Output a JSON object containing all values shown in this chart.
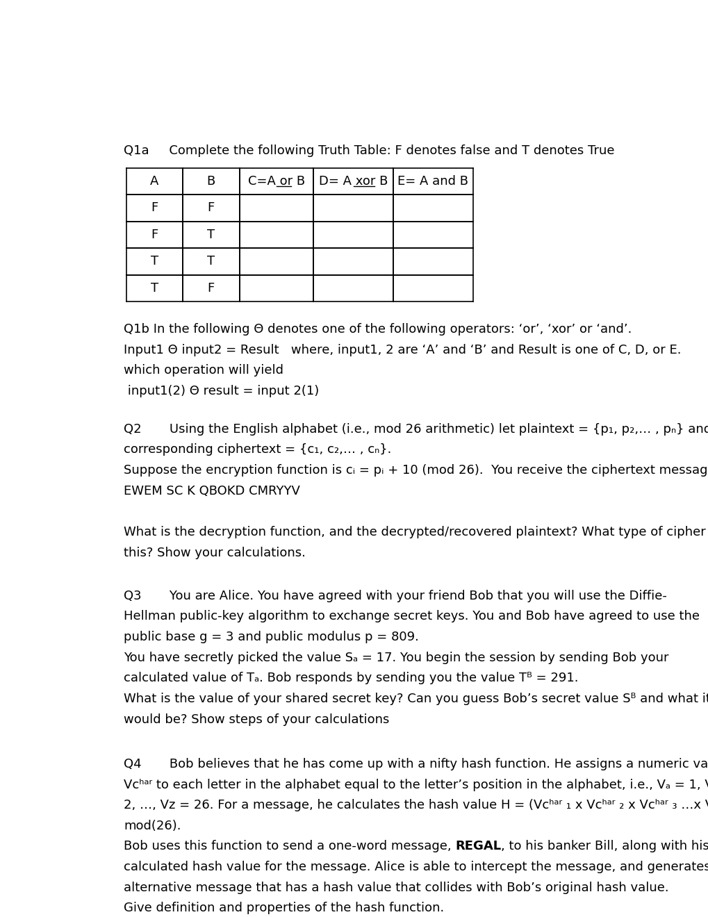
{
  "bg_color": "#ffffff",
  "text_color": "#000000",
  "font_size": 13,
  "title_line": "Q1a     Complete the following Truth Table: F denotes false and T denotes True",
  "table_headers": [
    "A",
    "B",
    "C=A or B",
    "D= A xor B",
    "E= A and B"
  ],
  "col_underline_word": [
    "",
    "",
    "or",
    "xor",
    ""
  ],
  "table_rows": [
    [
      "F",
      "F",
      "",
      "",
      ""
    ],
    [
      "F",
      "T",
      "",
      "",
      ""
    ],
    [
      "T",
      "T",
      "",
      "",
      ""
    ],
    [
      "T",
      "F",
      "",
      "",
      ""
    ]
  ]
}
